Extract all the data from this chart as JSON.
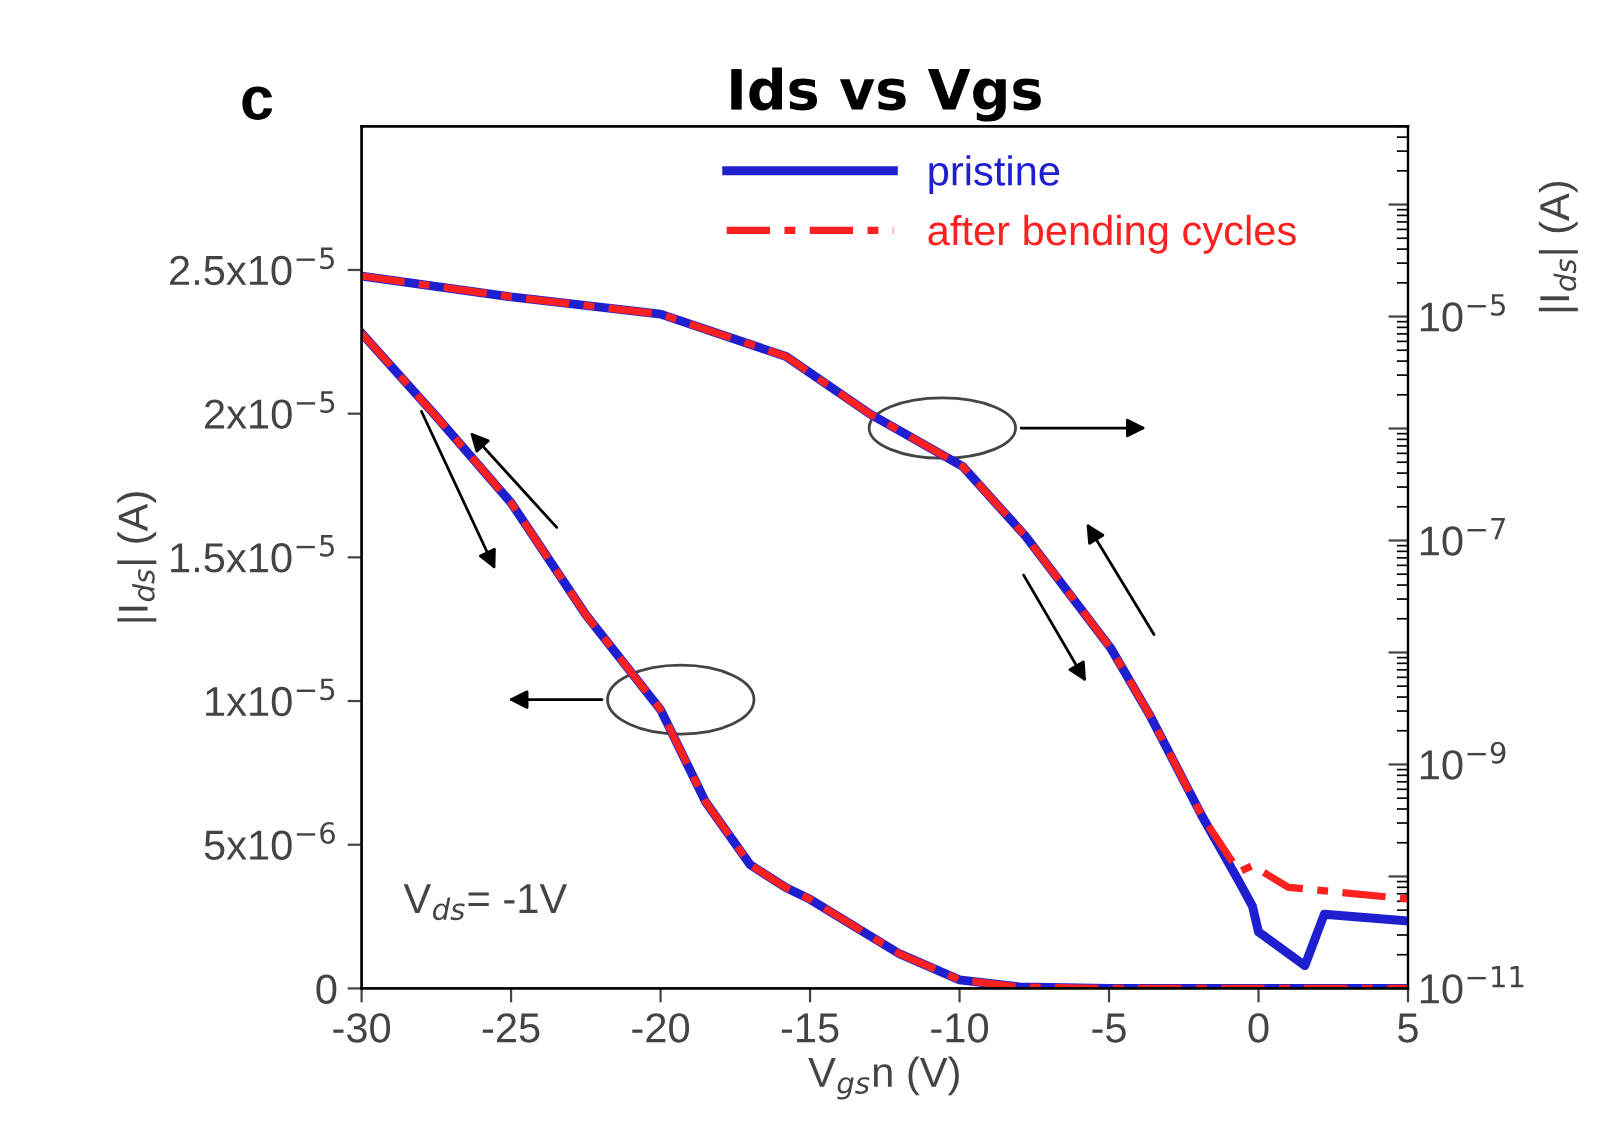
{
  "chart_data": {
    "type": "line",
    "title": "Ids vs Vgs",
    "xlabel": "V$_{gs}$n (V)",
    "ylabel": "|I$_{ds}$| (A)",
    "y2label": "|I$_{ds}$| (A)",
    "annotations": [
      "c",
      "V$_{ds}$= -1V"
    ],
    "xlim": [
      -30,
      5
    ],
    "xticks": [
      -30,
      -25,
      -20,
      -15,
      -10,
      -5,
      0,
      5
    ],
    "ylim": [
      0,
      3e-05
    ],
    "yticks": [
      {
        "value": 0,
        "label": "0"
      },
      {
        "value": 5e-06,
        "label": "5x10$^{−6}$"
      },
      {
        "value": 1e-05,
        "label": "1x10$^{−5}$"
      },
      {
        "value": 1.5e-05,
        "label": "1.5x10$^{−5}$"
      },
      {
        "value": 2e-05,
        "label": "2x10$^{−5}$"
      },
      {
        "value": 2.5e-05,
        "label": "2.5x10$^{−5}$"
      }
    ],
    "log": "y2",
    "y2lim": [
      1e-11,
      0.0005
    ],
    "y2ticks": [
      {
        "value": 1e-11,
        "label": "10$^{−11}$"
      },
      {
        "value": 1e-10,
        "label": null
      },
      {
        "value": 1e-09,
        "label": "10$^{−9}$"
      },
      {
        "value": 1e-08,
        "label": null
      },
      {
        "value": 1e-07,
        "label": "10$^{−7}$"
      },
      {
        "value": 1e-06,
        "label": null
      },
      {
        "value": 1e-05,
        "label": "10$^{−5}$"
      },
      {
        "value": 0.0001,
        "label": null
      }
    ],
    "grid": false,
    "legend": "top right",
    "marker": "none",
    "series": [
      {
        "name": "pristine",
        "color": "#1f1fd0",
        "line_style": "solid",
        "x": [
          -30,
          -27.5,
          -25,
          -22.5,
          -20,
          -18.5,
          -17,
          -15.8,
          -15,
          -12,
          -10,
          -8,
          -5,
          0,
          5
        ],
        "values": [
          2.28e-05,
          1.99e-05,
          1.69e-05,
          1.3e-05,
          9.7e-06,
          6.5e-06,
          4.3e-06,
          3.5e-06,
          3.1e-06,
          1.2e-06,
          3e-07,
          5e-08,
          0,
          0,
          0
        ]
      },
      {
        "name": "after bending cycles",
        "color": "#ff2020",
        "line_style": "dashed",
        "x": [
          -30,
          -27.5,
          -25,
          -22.5,
          -20,
          -18.5,
          -17,
          -15.8,
          -15,
          -12,
          -10,
          -8,
          -5,
          0,
          5
        ],
        "values": [
          2.28e-05,
          1.99e-05,
          1.69e-05,
          1.3e-05,
          9.7e-06,
          6.5e-06,
          4.3e-06,
          3.5e-06,
          3.1e-06,
          1.2e-06,
          3e-07,
          5e-08,
          0,
          0,
          0
        ]
      },
      {
        "color": "#1f1fd0",
        "line_style": "solid",
        "axis": "y2",
        "x": [
          -30,
          -25,
          -20,
          -15.8,
          -13,
          -9.9,
          -7.8,
          -4.95,
          -3.65,
          -1.9,
          -0.65,
          -0.2,
          0,
          1.55,
          2.2,
          5
        ],
        "values": [
          2.3e-05,
          1.5e-05,
          1.05e-05,
          4.4e-06,
          1.35e-06,
          4.6e-07,
          1.1e-07,
          1.1e-08,
          2.8e-09,
          3.5e-10,
          9e-11,
          5.4e-11,
          3.2e-11,
          1.6e-11,
          4.6e-11,
          4e-11
        ]
      },
      {
        "color": "#ff2020",
        "line_style": "dashed",
        "axis": "y2",
        "x": [
          -30,
          -25,
          -20,
          -15.8,
          -13,
          -9.9,
          -7.8,
          -4.95,
          -3.65,
          -1.9,
          -0.65,
          -0.2,
          1,
          5
        ],
        "values": [
          2.3e-05,
          1.5e-05,
          1.05e-05,
          4.4e-06,
          1.35e-06,
          4.6e-07,
          1.1e-07,
          1.1e-08,
          2.8e-09,
          3.5e-10,
          1.1e-10,
          1.25e-10,
          8e-11,
          6.3e-11
        ]
      }
    ]
  }
}
